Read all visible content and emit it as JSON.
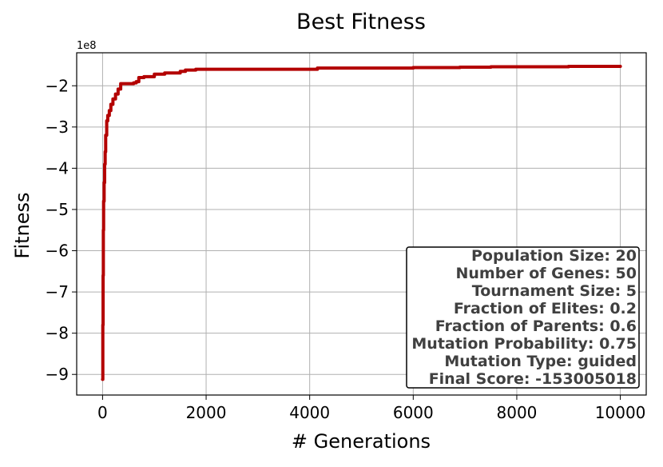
{
  "chart_data": {
    "type": "line",
    "title": "Best Fitness",
    "xlabel": "# Generations",
    "ylabel": "Fitness",
    "y_offset_label": "1e8",
    "xlim": [
      -500,
      10500
    ],
    "ylim": [
      -9.5,
      -1.2
    ],
    "x_ticks": [
      0,
      2000,
      4000,
      6000,
      8000,
      10000
    ],
    "x_tick_labels": [
      "0",
      "2000",
      "4000",
      "6000",
      "8000",
      "10000"
    ],
    "y_ticks": [
      -2,
      -3,
      -4,
      -5,
      -6,
      -7,
      -8,
      -9
    ],
    "y_tick_labels": [
      "−2",
      "−3",
      "−4",
      "−5",
      "−6",
      "−7",
      "−8",
      "−9"
    ],
    "grid": true,
    "line_color": "#b30000",
    "series": [
      {
        "x": [
          0,
          5,
          10,
          15,
          20,
          30,
          40,
          50,
          60,
          80,
          100,
          130,
          160,
          200,
          250,
          300,
          350,
          400,
          600,
          650,
          700,
          800,
          1000,
          1200,
          1500,
          1600,
          1800,
          2000,
          3000,
          4000,
          4150,
          5000,
          6000,
          6800,
          6900,
          7500,
          8000,
          9000,
          10000
        ],
        "y": [
          -9.12,
          -7.8,
          -6.6,
          -5.5,
          -4.8,
          -4.35,
          -3.9,
          -3.6,
          -3.2,
          -2.85,
          -2.72,
          -2.6,
          -2.45,
          -2.32,
          -2.2,
          -2.08,
          -1.95,
          -1.95,
          -1.93,
          -1.9,
          -1.8,
          -1.78,
          -1.72,
          -1.69,
          -1.65,
          -1.62,
          -1.6,
          -1.6,
          -1.6,
          -1.6,
          -1.57,
          -1.57,
          -1.56,
          -1.56,
          -1.55,
          -1.54,
          -1.54,
          -1.53,
          -1.53
        ]
      }
    ]
  },
  "info_box": {
    "lines": [
      "Population Size: 20",
      "Number of Genes: 50",
      "Tournament Size: 5",
      "Fraction of Elites: 0.2",
      "Fraction of Parents: 0.6",
      "Mutation Probability: 0.75",
      "Mutation Type: guided",
      "Final Score: -153005018"
    ]
  }
}
